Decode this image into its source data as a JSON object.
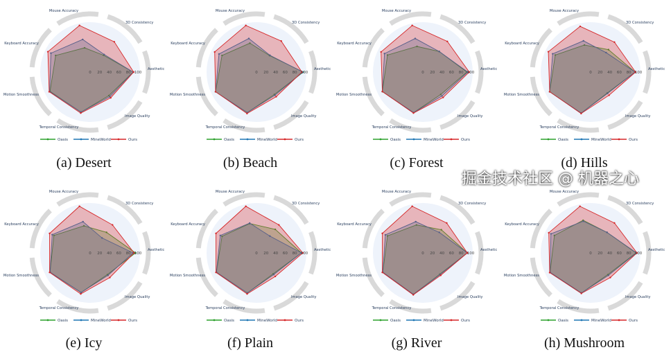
{
  "chart_data": {
    "type": "radar",
    "axes": [
      "Aesthetic",
      "3D Consistency",
      "Mouse Accuracy",
      "Keyboard Accuracy",
      "Motion Smoothness",
      "Temporal Consistency",
      "Image Quality"
    ],
    "radial_ticks": [
      "0",
      "20",
      "40",
      "60",
      "80",
      "100"
    ],
    "radial_range": [
      0,
      100
    ],
    "legend": {
      "placement": "bottom",
      "entries": [
        "Oasis",
        "MineWorld",
        "Ours"
      ]
    },
    "colors": {
      "Oasis": "#2ca02c",
      "MineWorld": "#1f77b4",
      "Ours": "#d62728"
    },
    "panels": [
      {
        "caption": "(a) Desert",
        "series": [
          {
            "name": "Oasis",
            "values": [
              90,
              45,
              52,
              80,
              93,
              86,
              63
            ]
          },
          {
            "name": "MineWorld",
            "values": [
              90,
              47,
              70,
              91,
              94,
              86,
              66
            ]
          },
          {
            "name": "Ours",
            "values": [
              91,
              81,
              100,
              98,
              95,
              88,
              69
            ]
          }
        ]
      },
      {
        "caption": "(b) Beach",
        "series": [
          {
            "name": "Oasis",
            "values": [
              98,
              44,
              62,
              80,
              95,
              87,
              60
            ]
          },
          {
            "name": "MineWorld",
            "values": [
              97,
              45,
              72,
              87,
              95,
              87,
              62
            ]
          },
          {
            "name": "Ours",
            "values": [
              95,
              83,
              100,
              97,
              95,
              89,
              66
            ]
          }
        ]
      },
      {
        "caption": "(c) Forest",
        "series": [
          {
            "name": "Oasis",
            "values": [
              92,
              55,
              55,
              82,
              94,
              87,
              60
            ]
          },
          {
            "name": "MineWorld",
            "values": [
              94,
              55,
              72,
              89,
              94,
              87,
              64
            ]
          },
          {
            "name": "Ours",
            "values": [
              97,
              82,
              100,
              97,
              94,
              88,
              68
            ]
          }
        ]
      },
      {
        "caption": "(d) Hills",
        "series": [
          {
            "name": "Oasis",
            "values": [
              93,
              60,
              58,
              82,
              95,
              88,
              56
            ]
          },
          {
            "name": "MineWorld",
            "values": [
              93,
              52,
              67,
              88,
              95,
              88,
              57
            ]
          },
          {
            "name": "Ours",
            "values": [
              94,
              80,
              98,
              98,
              95,
              89,
              62
            ]
          }
        ]
      },
      {
        "caption": "(e) Icy",
        "series": [
          {
            "name": "Oasis",
            "values": [
              95,
              55,
              58,
              84,
              93,
              85,
              58
            ]
          },
          {
            "name": "MineWorld",
            "values": [
              90,
              40,
              67,
              88,
              93,
              85,
              60
            ]
          },
          {
            "name": "Ours",
            "values": [
              92,
              75,
              100,
              94,
              94,
              88,
              66
            ]
          }
        ]
      },
      {
        "caption": "(f) Plain",
        "series": [
          {
            "name": "Oasis",
            "values": [
              94,
              63,
              63,
              80,
              93,
              86,
              56
            ]
          },
          {
            "name": "MineWorld",
            "values": [
              94,
              45,
              64,
              84,
              93,
              86,
              58
            ]
          },
          {
            "name": "Ours",
            "values": [
              97,
              75,
              100,
              94,
              94,
              88,
              63
            ]
          }
        ]
      },
      {
        "caption": "(g) River",
        "series": [
          {
            "name": "Oasis",
            "values": [
              93,
              62,
              60,
              82,
              93,
              89,
              57
            ]
          },
          {
            "name": "MineWorld",
            "values": [
              93,
              55,
              67,
              87,
              93,
              89,
              58
            ]
          },
          {
            "name": "Ours",
            "values": [
              93,
              80,
              100,
              94,
              94,
              90,
              60
            ]
          }
        ]
      },
      {
        "caption": "(h) Mushroom",
        "series": [
          {
            "name": "Oasis",
            "values": [
              95,
              55,
              70,
              84,
              94,
              86,
              58
            ]
          },
          {
            "name": "MineWorld",
            "values": [
              96,
              55,
              68,
              92,
              94,
              86,
              60
            ]
          },
          {
            "name": "Ours",
            "values": [
              97,
              80,
              100,
              97,
              95,
              87,
              66
            ]
          }
        ]
      }
    ]
  },
  "watermark": "掘金技术社区 @ 机器之心"
}
